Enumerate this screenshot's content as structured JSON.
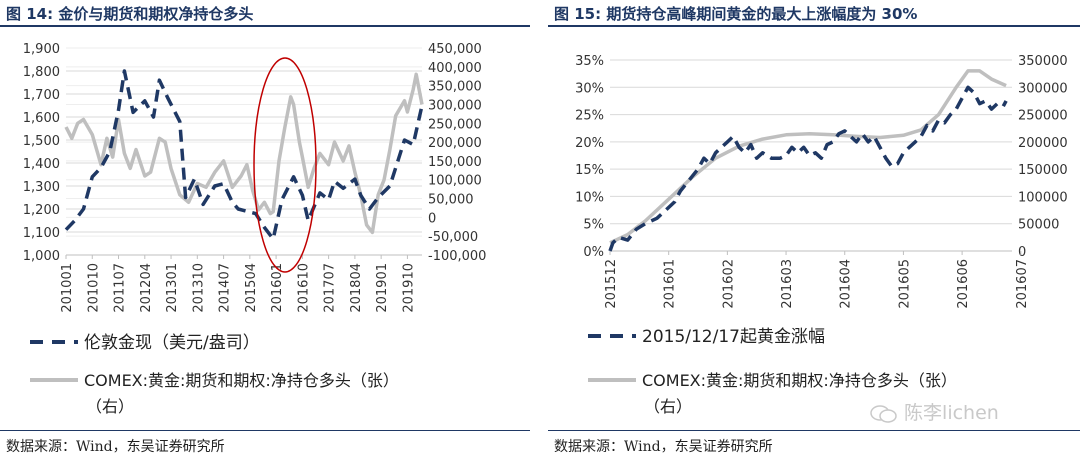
{
  "left": {
    "title": "图 14: 金价与期货和期权净持仓多头",
    "source": "数据来源：Wind，东吴证券研究所",
    "legend": [
      "伦敦金现（美元/盎司）",
      "COMEX:黄金:期货和期权:净持仓多头（张）",
      "（右）"
    ]
  },
  "right": {
    "title": "图 15: 期货持仓高峰期间黄金的最大上涨幅度为 30%",
    "source": "数据来源：Wind，东吴证券研究所",
    "legend": [
      "2015/12/17起黄金涨幅",
      "COMEX:黄金:期货和期权:净持仓多头（张）",
      "（右）"
    ]
  },
  "watermark": "陈李lichen",
  "colors": {
    "navy": "#1f3864",
    "gray": "#bfbfbf",
    "red": "#c00000",
    "grid": "#d9d9d9"
  },
  "chart_data": [
    {
      "type": "line",
      "title": "图 14: 金价与期货和期权净持仓多头",
      "x_ticks": [
        "201001",
        "201010",
        "201107",
        "201204",
        "201301",
        "201310",
        "201407",
        "201504",
        "201601",
        "201610",
        "201707",
        "201804",
        "201901",
        "201910"
      ],
      "y_left": {
        "ylim": [
          1000,
          1900
        ],
        "ticks": [
          "1,000",
          "1,100",
          "1,200",
          "1,300",
          "1,400",
          "1,500",
          "1,600",
          "1,700",
          "1,800",
          "1,900"
        ]
      },
      "y_right": {
        "ylim": [
          -100000,
          450000
        ],
        "ticks": [
          "-100,000",
          "-50,000",
          "0",
          "50,000",
          "100,000",
          "150,000",
          "200,000",
          "250,000",
          "300,000",
          "350,000",
          "400,000",
          "450,000"
        ]
      },
      "annotation": "red ellipse around 2016 peak",
      "series": [
        {
          "name": "伦敦金现（美元/盎司）",
          "axis": "left",
          "style": "dashed-navy",
          "x": [
            "201001",
            "201004",
            "201007",
            "201010",
            "201101",
            "201104",
            "201107",
            "201109",
            "201112",
            "201204",
            "201207",
            "201209",
            "201212",
            "201304",
            "201306",
            "201309",
            "201312",
            "201404",
            "201407",
            "201410",
            "201412",
            "201503",
            "201506",
            "201509",
            "201512",
            "201603",
            "201607",
            "201610",
            "201612",
            "201704",
            "201707",
            "201709",
            "201712",
            "201804",
            "201806",
            "201809",
            "201812",
            "201904",
            "201907",
            "201909",
            "201912",
            "202003"
          ],
          "values": [
            1110,
            1150,
            1200,
            1340,
            1380,
            1450,
            1630,
            1800,
            1620,
            1670,
            1600,
            1760,
            1680,
            1580,
            1250,
            1330,
            1220,
            1300,
            1310,
            1230,
            1200,
            1190,
            1180,
            1120,
            1070,
            1240,
            1340,
            1260,
            1150,
            1270,
            1240,
            1320,
            1290,
            1330,
            1260,
            1200,
            1250,
            1300,
            1420,
            1500,
            1480,
            1650
          ]
        },
        {
          "name": "COMEX:黄金:期货和期权:净持仓多头（张）",
          "axis": "right",
          "style": "solid-gray",
          "x": [
            "201001",
            "201003",
            "201005",
            "201007",
            "201010",
            "201101",
            "201103",
            "201105",
            "201107",
            "201109",
            "201111",
            "201201",
            "201204",
            "201206",
            "201209",
            "201211",
            "201301",
            "201304",
            "201307",
            "201310",
            "201401",
            "201404",
            "201407",
            "201410",
            "201501",
            "201503",
            "201505",
            "201507",
            "201509",
            "201511",
            "201512",
            "201602",
            "201604",
            "201606",
            "201607",
            "201609",
            "201610",
            "201612",
            "201702",
            "201704",
            "201707",
            "201709",
            "201712",
            "201802",
            "201804",
            "201806",
            "201808",
            "201810",
            "201812",
            "201902",
            "201904",
            "201906",
            "201909",
            "201910",
            "201912",
            "202001",
            "202003"
          ],
          "values": [
            240000,
            210000,
            250000,
            260000,
            220000,
            140000,
            210000,
            160000,
            260000,
            170000,
            130000,
            180000,
            110000,
            120000,
            210000,
            200000,
            130000,
            60000,
            40000,
            90000,
            80000,
            120000,
            150000,
            80000,
            110000,
            140000,
            70000,
            20000,
            40000,
            10000,
            15000,
            150000,
            240000,
            320000,
            300000,
            200000,
            160000,
            80000,
            130000,
            170000,
            140000,
            200000,
            150000,
            190000,
            120000,
            60000,
            -20000,
            -40000,
            60000,
            100000,
            180000,
            270000,
            310000,
            280000,
            340000,
            380000,
            300000
          ]
        }
      ]
    },
    {
      "type": "line",
      "title": "图 15: 期货持仓高峰期间黄金的最大上涨幅度为 30%",
      "x_ticks": [
        "201512",
        "201601",
        "201602",
        "201603",
        "201604",
        "201605",
        "201606",
        "201607"
      ],
      "y_left": {
        "ylim": [
          0,
          0.35
        ],
        "ticks": [
          "0%",
          "5%",
          "10%",
          "15%",
          "20%",
          "25%",
          "30%",
          "35%"
        ]
      },
      "y_right": {
        "ylim": [
          0,
          350000
        ],
        "ticks": [
          "0",
          "50000",
          "100000",
          "150000",
          "200000",
          "250000",
          "300000",
          "350000"
        ]
      },
      "series": [
        {
          "name": "2015/12/17起黄金涨幅",
          "axis": "left",
          "style": "dashed-navy",
          "x": [
            0.0,
            0.05,
            0.15,
            0.3,
            0.45,
            0.6,
            0.8,
            0.95,
            1.1,
            1.2,
            1.35,
            1.5,
            1.6,
            1.7,
            1.8,
            1.9,
            2.0,
            2.1,
            2.2,
            2.3,
            2.4,
            2.5,
            2.6,
            2.75,
            2.9,
            3.0,
            3.1,
            3.2,
            3.3,
            3.4,
            3.5,
            3.6,
            3.7,
            3.8,
            3.9,
            4.0,
            4.1,
            4.2,
            4.3,
            4.4,
            4.5,
            4.6,
            4.7,
            4.8,
            4.9,
            5.0,
            5.1,
            5.2,
            5.3,
            5.4,
            5.5,
            5.6,
            5.7,
            5.8,
            5.9,
            6.0,
            6.1,
            6.2,
            6.3,
            6.4,
            6.5,
            6.6,
            6.7,
            6.75
          ],
          "values": [
            0.0,
            0.015,
            0.025,
            0.02,
            0.04,
            0.05,
            0.06,
            0.075,
            0.09,
            0.11,
            0.13,
            0.15,
            0.17,
            0.16,
            0.18,
            0.19,
            0.2,
            0.21,
            0.19,
            0.18,
            0.195,
            0.17,
            0.18,
            0.17,
            0.17,
            0.175,
            0.19,
            0.18,
            0.19,
            0.175,
            0.18,
            0.17,
            0.195,
            0.2,
            0.215,
            0.22,
            0.21,
            0.2,
            0.215,
            0.2,
            0.21,
            0.19,
            0.17,
            0.155,
            0.16,
            0.18,
            0.19,
            0.2,
            0.21,
            0.23,
            0.22,
            0.24,
            0.235,
            0.25,
            0.26,
            0.28,
            0.3,
            0.29,
            0.27,
            0.275,
            0.26,
            0.27,
            0.265,
            0.275
          ]
        },
        {
          "name": "COMEX:黄金:期货和期权:净持仓多头（张）",
          "axis": "right",
          "style": "solid-gray",
          "x": [
            0.0,
            0.3,
            0.6,
            1.0,
            1.4,
            1.8,
            2.2,
            2.6,
            3.0,
            3.4,
            3.8,
            4.2,
            4.6,
            5.0,
            5.3,
            5.6,
            5.9,
            6.1,
            6.3,
            6.5,
            6.75
          ],
          "values": [
            15000,
            30000,
            55000,
            95000,
            135000,
            170000,
            192000,
            205000,
            213000,
            215000,
            213000,
            210000,
            208000,
            212000,
            222000,
            250000,
            300000,
            330000,
            330000,
            315000,
            303000
          ]
        }
      ]
    }
  ]
}
